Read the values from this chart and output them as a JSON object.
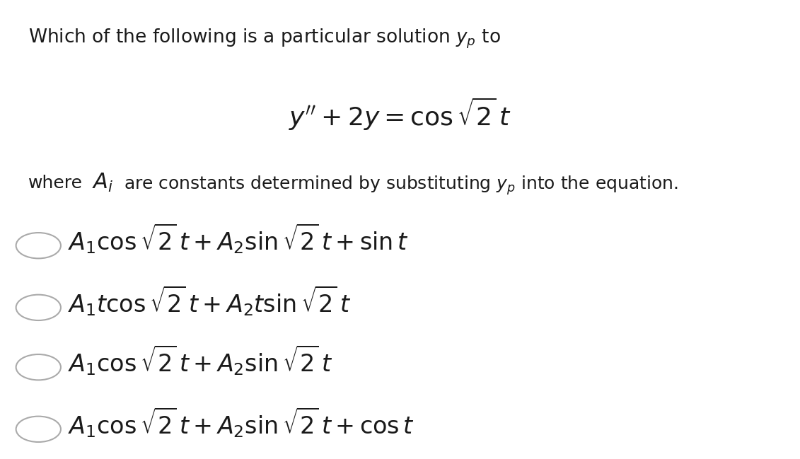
{
  "background_color": "#ffffff",
  "fig_width": 11.31,
  "fig_height": 6.49,
  "dpi": 100,
  "question_text": "Which of the following is a particular solution $y_p$ to",
  "equation": "$y'' + 2y = \\cos \\sqrt{2}\\,t$",
  "where_text": "where $\\mathcal{A}_i$ are constants determined by substituting $y_p$ into the equation.",
  "options": [
    "$A_1 \\cos \\sqrt{2}\\,t + A_2 \\sin \\sqrt{2}\\,t + \\sin t$",
    "$A_1 t \\cos \\sqrt{2}\\,t + A_2 t \\sin \\sqrt{2}\\,t$",
    "$A_1 \\cos \\sqrt{2}\\,t + A_2 \\sin \\sqrt{2}\\,t$",
    "$A_1 \\cos \\sqrt{2}\\,t + A_2 \\sin \\sqrt{2}\\,t + \\cos t$"
  ],
  "text_color": "#1a1a1a",
  "question_fontsize": 19,
  "equation_fontsize": 26,
  "where_fontsize": 18,
  "option_fontsize": 24,
  "circle_linewidth": 1.5,
  "circle_color": "#aaaaaa"
}
